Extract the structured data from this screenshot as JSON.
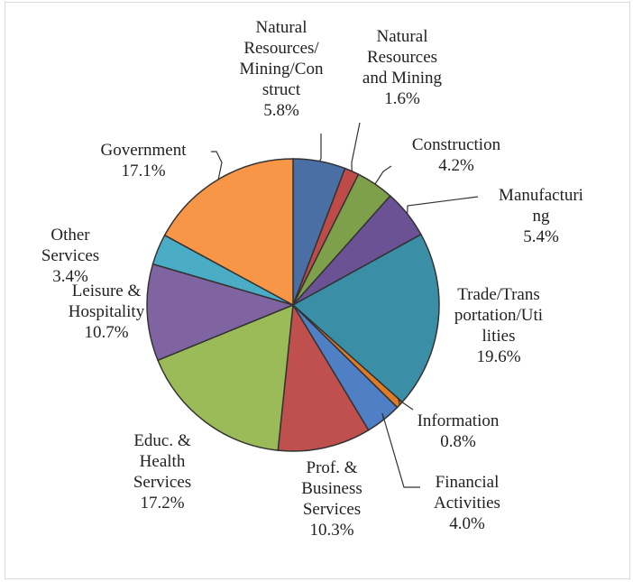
{
  "chart_data": {
    "type": "pie",
    "title": "",
    "start_angle_deg": 0,
    "direction": "clockwise",
    "slices": [
      {
        "label": "Natural Resources/ Mining/Con struct",
        "lines": [
          "Natural",
          "Resources/",
          "Mining/Con",
          "struct",
          "5.8%"
        ],
        "value": 5.8,
        "color": "#4a6fa5",
        "show_slice": false
      },
      {
        "label": "Natural Resources and Mining",
        "lines": [
          "Natural",
          "Resources",
          "and Mining",
          "1.6%"
        ],
        "value": 1.6,
        "color": "#be4b48"
      },
      {
        "label": "Construction",
        "lines": [
          "Construction",
          "4.2%"
        ],
        "value": 4.2,
        "color": "#7fa04b"
      },
      {
        "label": "Manufacturing",
        "lines": [
          "Manufacturi",
          "ng",
          "5.4%"
        ],
        "value": 5.4,
        "color": "#6a5294"
      },
      {
        "label": "Trade/Transportation/Utilities",
        "lines": [
          "Trade/Trans",
          "portation/Uti",
          "lities",
          "19.6%"
        ],
        "value": 19.6,
        "color": "#3a8fa6"
      },
      {
        "label": "Information",
        "lines": [
          "Information",
          "0.8%"
        ],
        "value": 0.8,
        "color": "#e07b27"
      },
      {
        "label": "Financial Activities",
        "lines": [
          "Financial",
          "Activities",
          "4.0%"
        ],
        "value": 4.0,
        "color": "#4f7fc4"
      },
      {
        "label": "Prof. & Business Services",
        "lines": [
          "Prof. &",
          "Business",
          "Services",
          "10.3%"
        ],
        "value": 10.3,
        "color": "#c0504d"
      },
      {
        "label": "Educ. & Health Services",
        "lines": [
          "Educ. &",
          "Health",
          "Services",
          "17.2%"
        ],
        "value": 17.2,
        "color": "#9bbb59"
      },
      {
        "label": "Leisure & Hospitality",
        "lines": [
          "Leisure &",
          "Hospitality",
          "10.7%"
        ],
        "value": 10.7,
        "color": "#8064a2"
      },
      {
        "label": "Other Services",
        "lines": [
          "Other",
          "Services",
          "3.4%"
        ],
        "value": 3.4,
        "color": "#4bacc6"
      },
      {
        "label": "Government",
        "lines": [
          "Government",
          "17.1%"
        ],
        "value": 17.1,
        "color": "#f79646"
      }
    ]
  }
}
